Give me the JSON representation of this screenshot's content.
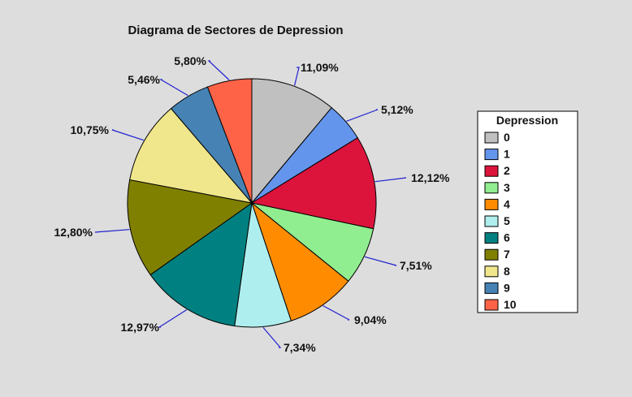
{
  "chart_data": {
    "type": "pie",
    "title": "Diagrama de Sectores de Depression",
    "legend_title": "Depression",
    "legend_position": "right",
    "categories": [
      "0",
      "1",
      "2",
      "3",
      "4",
      "5",
      "6",
      "7",
      "8",
      "9",
      "10"
    ],
    "values": [
      11.09,
      5.12,
      12.12,
      7.51,
      9.04,
      7.34,
      12.97,
      12.8,
      10.75,
      5.46,
      5.8
    ],
    "labels": [
      "11,09%",
      "5,12%",
      "12,12%",
      "7,51%",
      "9,04%",
      "7,34%",
      "12,97%",
      "12,80%",
      "10,75%",
      "5,46%",
      "5,80%"
    ],
    "colors": [
      "#c0c0c0",
      "#6495ed",
      "#dc143c",
      "#90ee90",
      "#ff8c00",
      "#afeeee",
      "#008080",
      "#808000",
      "#f0e68c",
      "#4682b4",
      "#ff6347"
    ],
    "leader_color": "#2020d0"
  }
}
